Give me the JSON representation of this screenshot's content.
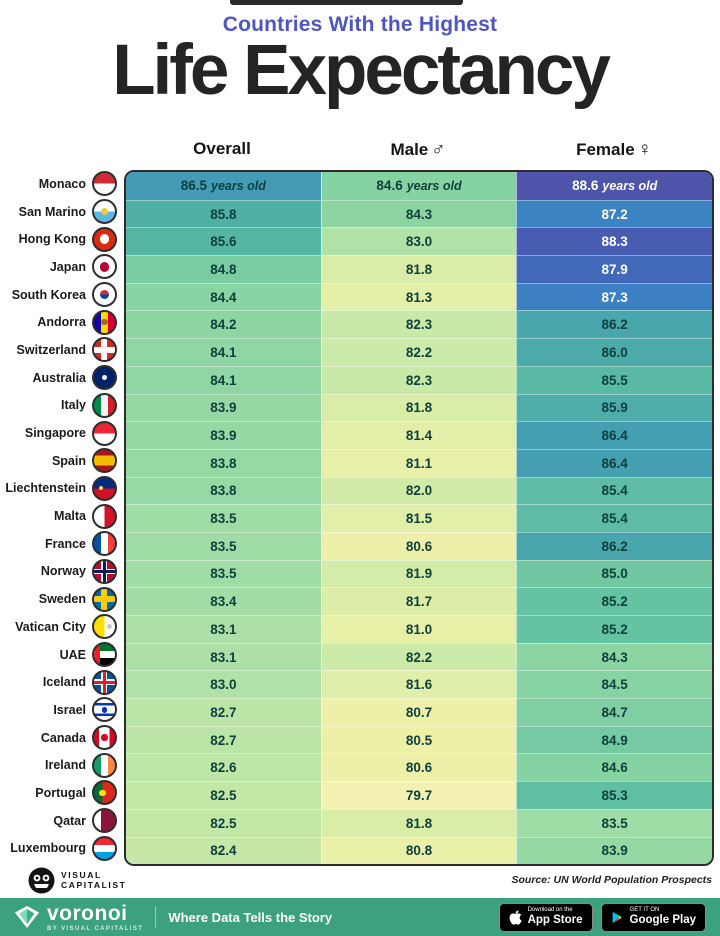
{
  "header": {
    "subtitle": "Countries With the Highest",
    "title": "Life Expectancy",
    "accent_color": "#4e56c0",
    "title_color": "#242424"
  },
  "columns": [
    {
      "key": "overall",
      "label": "Overall",
      "symbol": ""
    },
    {
      "key": "male",
      "label": "Male",
      "symbol": "♂"
    },
    {
      "key": "female",
      "label": "Female",
      "symbol": "♀"
    }
  ],
  "table": {
    "first_row_suffix": "years old",
    "border_color": "#2c2c2c"
  },
  "color_scale": {
    "stops": [
      [
        79.5,
        "#f4f3b5"
      ],
      [
        80.5,
        "#eef0a8"
      ],
      [
        81.5,
        "#e2efa8"
      ],
      [
        82.3,
        "#c9e9a8"
      ],
      [
        83.0,
        "#b0e1a6"
      ],
      [
        83.8,
        "#97d9a4"
      ],
      [
        84.6,
        "#85d2a3"
      ],
      [
        85.3,
        "#60bfa2"
      ],
      [
        85.8,
        "#50b0a6"
      ],
      [
        86.3,
        "#46a3ae"
      ],
      [
        86.7,
        "#3f93bb"
      ],
      [
        87.4,
        "#3b7cc4"
      ],
      [
        88.0,
        "#4365b7"
      ],
      [
        88.6,
        "#4d54aa"
      ]
    ],
    "white_text_min": 87.0,
    "dark_text": "#0d3f3b",
    "light_text": "#ffffff"
  },
  "rows": [
    {
      "country": "Monaco",
      "overall": "86.5",
      "male": "84.6",
      "female": "88.6",
      "flag": {
        "kind": "h",
        "colors": [
          "#ce2b37",
          "#ffffff"
        ]
      }
    },
    {
      "country": "San Marino",
      "overall": "85.8",
      "male": "84.3",
      "female": "87.2",
      "flag": {
        "kind": "h",
        "colors": [
          "#ffffff",
          "#5eb6e4"
        ],
        "dot": "#f0c93c",
        "ds": 0.32
      }
    },
    {
      "country": "Hong Kong",
      "overall": "85.6",
      "male": "83.0",
      "female": "88.3",
      "flag": {
        "kind": "h",
        "colors": [
          "#de2910"
        ],
        "dot": "#ffffff",
        "ds": 0.45
      }
    },
    {
      "country": "Japan",
      "overall": "84.8",
      "male": "81.8",
      "female": "87.9",
      "flag": {
        "kind": "h",
        "colors": [
          "#ffffff"
        ],
        "dot": "#bc002d",
        "ds": 0.45
      }
    },
    {
      "country": "South Korea",
      "overall": "84.4",
      "male": "81.3",
      "female": "87.3",
      "flag": {
        "kind": "h",
        "colors": [
          "#ffffff"
        ],
        "dot": [
          "#cd2e3a",
          "#0047a0"
        ],
        "ds": 0.45
      }
    },
    {
      "country": "Andorra",
      "overall": "84.2",
      "male": "82.3",
      "female": "86.2",
      "flag": {
        "kind": "v",
        "colors": [
          "#10069f",
          "#ffdd00",
          "#d50032"
        ],
        "dot": "#a5652c",
        "ds": 0.3
      }
    },
    {
      "country": "Switzerland",
      "overall": "84.1",
      "male": "82.2",
      "female": "86.0",
      "flag": {
        "kind": "cross",
        "bg": "#d52b1e",
        "cross": "#ffffff"
      }
    },
    {
      "country": "Australia",
      "overall": "84.1",
      "male": "82.3",
      "female": "85.5",
      "flag": {
        "kind": "h",
        "colors": [
          "#012169"
        ],
        "dot": "#ffffff",
        "ds": 0.26
      }
    },
    {
      "country": "Italy",
      "overall": "83.9",
      "male": "81.8",
      "female": "85.9",
      "flag": {
        "kind": "v",
        "colors": [
          "#008c45",
          "#f4f5f0",
          "#cd212a"
        ]
      }
    },
    {
      "country": "Singapore",
      "overall": "83.9",
      "male": "81.4",
      "female": "86.4",
      "flag": {
        "kind": "h",
        "colors": [
          "#ee2536",
          "#ffffff"
        ]
      }
    },
    {
      "country": "Spain",
      "overall": "83.8",
      "male": "81.1",
      "female": "86.4",
      "flag": {
        "kind": "h",
        "colors": [
          "#aa151b",
          "#f1bf00",
          "#aa151b"
        ],
        "w": [
          1,
          2,
          1
        ]
      }
    },
    {
      "country": "Liechtenstein",
      "overall": "83.8",
      "male": "82.0",
      "female": "85.4",
      "flag": {
        "kind": "h",
        "colors": [
          "#002b7f",
          "#ce1126"
        ],
        "dot": "#ffd83d",
        "ds": 0.2,
        "dx": 32
      }
    },
    {
      "country": "Malta",
      "overall": "83.5",
      "male": "81.5",
      "female": "85.4",
      "flag": {
        "kind": "v",
        "colors": [
          "#ffffff",
          "#cf142b"
        ]
      }
    },
    {
      "country": "France",
      "overall": "83.5",
      "male": "80.6",
      "female": "86.2",
      "flag": {
        "kind": "v",
        "colors": [
          "#0055a4",
          "#ffffff",
          "#ef4135"
        ]
      }
    },
    {
      "country": "Norway",
      "overall": "83.5",
      "male": "81.9",
      "female": "85.0",
      "flag": {
        "kind": "cross",
        "bg": "#ba0c2f",
        "cross": "#ffffff",
        "inner": "#00205b"
      }
    },
    {
      "country": "Sweden",
      "overall": "83.4",
      "male": "81.7",
      "female": "85.2",
      "flag": {
        "kind": "cross",
        "bg": "#006aa7",
        "cross": "#fecc02"
      }
    },
    {
      "country": "Vatican City",
      "overall": "83.1",
      "male": "81.0",
      "female": "85.2",
      "flag": {
        "kind": "v",
        "colors": [
          "#ffe000",
          "#ffffff"
        ],
        "dot": "#c9c9c9",
        "ds": 0.24,
        "dx": 72
      }
    },
    {
      "country": "UAE",
      "overall": "83.1",
      "male": "82.2",
      "female": "84.3",
      "flag": {
        "kind": "h",
        "colors": [
          "#00732f",
          "#ffffff",
          "#000000"
        ],
        "bar": "#ee1c25"
      }
    },
    {
      "country": "Iceland",
      "overall": "83.0",
      "male": "81.6",
      "female": "84.5",
      "flag": {
        "kind": "cross",
        "bg": "#02529c",
        "cross": "#ffffff",
        "inner": "#dc1e35"
      }
    },
    {
      "country": "Israel",
      "overall": "82.7",
      "male": "80.7",
      "female": "84.7",
      "flag": {
        "kind": "h",
        "colors": [
          "#ffffff",
          "#0038b8",
          "#ffffff",
          "#0038b8",
          "#ffffff"
        ],
        "w": [
          2,
          1,
          4,
          1,
          2
        ],
        "dot": "#0038b8",
        "ds": 0.26
      }
    },
    {
      "country": "Canada",
      "overall": "82.7",
      "male": "80.5",
      "female": "84.9",
      "flag": {
        "kind": "v",
        "colors": [
          "#d80621",
          "#ffffff",
          "#d80621"
        ],
        "w": [
          1,
          2,
          1
        ],
        "dot": "#d80621",
        "ds": 0.3
      }
    },
    {
      "country": "Ireland",
      "overall": "82.6",
      "male": "80.6",
      "female": "84.6",
      "flag": {
        "kind": "v",
        "colors": [
          "#169b62",
          "#ffffff",
          "#ff883e"
        ]
      }
    },
    {
      "country": "Portugal",
      "overall": "82.5",
      "male": "79.7",
      "female": "85.3",
      "flag": {
        "kind": "v",
        "colors": [
          "#046a38",
          "#da291c"
        ],
        "w": [
          2,
          3
        ],
        "dot": "#ffe900",
        "ds": 0.3,
        "dx": 40
      }
    },
    {
      "country": "Qatar",
      "overall": "82.5",
      "male": "81.8",
      "female": "83.5",
      "flag": {
        "kind": "v",
        "colors": [
          "#ffffff",
          "#8a1538"
        ],
        "w": [
          1,
          2
        ]
      }
    },
    {
      "country": "Luxembourg",
      "overall": "82.4",
      "male": "80.8",
      "female": "83.9",
      "flag": {
        "kind": "h",
        "colors": [
          "#ed2939",
          "#ffffff",
          "#00a1de"
        ]
      }
    }
  ],
  "footer": {
    "logo_line1": "VISUAL",
    "logo_line2": "CAPITALIST",
    "source": "Source: UN World Population Prospects"
  },
  "bottom_bar": {
    "bg": "#3ca17d",
    "brand": "voronoi",
    "brand_sub": "BY VISUAL CAPITALIST",
    "tagline": "Where Data Tells the Story",
    "badges": [
      {
        "icon": "apple-icon",
        "top": "Download on the",
        "bottom": "App Store"
      },
      {
        "icon": "google-play-icon",
        "top": "GET IT ON",
        "bottom": "Google Play"
      }
    ]
  },
  "chart_data": {
    "type": "heatmap",
    "title": "Countries With the Highest Life Expectancy",
    "unit": "years old",
    "categories": [
      "Monaco",
      "San Marino",
      "Hong Kong",
      "Japan",
      "South Korea",
      "Andorra",
      "Switzerland",
      "Australia",
      "Italy",
      "Singapore",
      "Spain",
      "Liechtenstein",
      "Malta",
      "France",
      "Norway",
      "Sweden",
      "Vatican City",
      "UAE",
      "Iceland",
      "Israel",
      "Canada",
      "Ireland",
      "Portugal",
      "Qatar",
      "Luxembourg"
    ],
    "series": [
      {
        "name": "Overall",
        "values": [
          86.5,
          85.8,
          85.6,
          84.8,
          84.4,
          84.2,
          84.1,
          84.1,
          83.9,
          83.9,
          83.8,
          83.8,
          83.5,
          83.5,
          83.5,
          83.4,
          83.1,
          83.1,
          83.0,
          82.7,
          82.7,
          82.6,
          82.5,
          82.5,
          82.4
        ]
      },
      {
        "name": "Male",
        "values": [
          84.6,
          84.3,
          83.0,
          81.8,
          81.3,
          82.3,
          82.2,
          82.3,
          81.8,
          81.4,
          81.1,
          82.0,
          81.5,
          80.6,
          81.9,
          81.7,
          81.0,
          82.2,
          81.6,
          80.7,
          80.5,
          80.6,
          79.7,
          81.8,
          80.8
        ]
      },
      {
        "name": "Female",
        "values": [
          88.6,
          87.2,
          88.3,
          87.9,
          87.3,
          86.2,
          86.0,
          85.5,
          85.9,
          86.4,
          86.4,
          85.4,
          85.4,
          86.2,
          85.0,
          85.2,
          85.2,
          84.3,
          84.5,
          84.7,
          84.9,
          84.6,
          85.3,
          83.5,
          83.9
        ]
      }
    ],
    "value_range": [
      79.7,
      88.6
    ],
    "source": "UN World Population Prospects"
  }
}
